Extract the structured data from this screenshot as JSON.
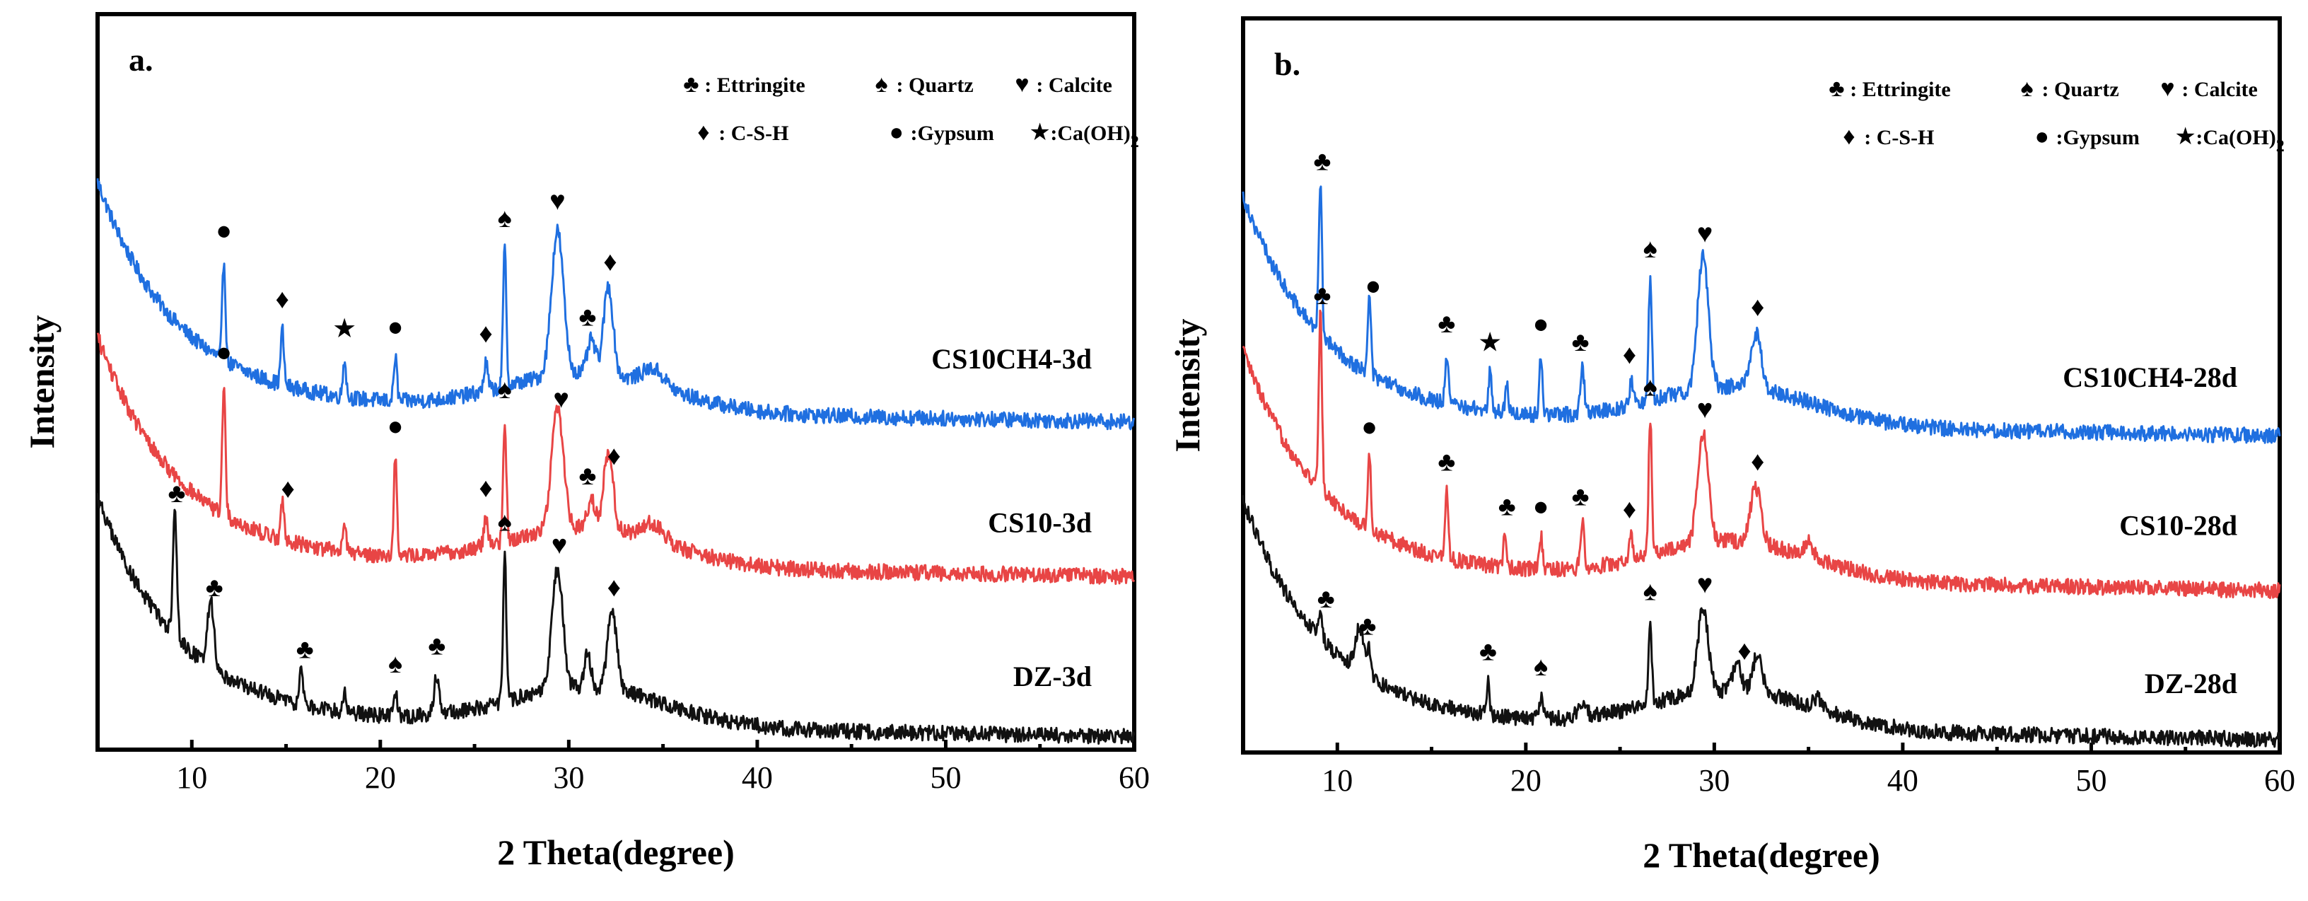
{
  "chart_data": [
    {
      "type": "line",
      "panel_label": "a.",
      "xlabel": "2 Theta(degree)",
      "ylabel": "Intensity",
      "xlim": [
        5,
        60
      ],
      "xticks": [
        10,
        20,
        30,
        40,
        50,
        60
      ],
      "yticks": "none",
      "legend": {
        "placement": "top-right",
        "entries": [
          {
            "symbol": "♣",
            "text": ": Ettringite"
          },
          {
            "symbol": "♠",
            "text": ": Quartz"
          },
          {
            "symbol": "♥",
            "text": ": Calcite"
          },
          {
            "symbol": "♦",
            "text": ": C-S-H"
          },
          {
            "symbol": "●",
            "text": ":Gypsum"
          },
          {
            "symbol": "★",
            "text": ":Ca(OH)",
            "subscript": "2"
          }
        ]
      },
      "series": [
        {
          "name": "CS10CH4-3d",
          "color": "#1f6fe0",
          "baseline": 0.6,
          "bg_start": 0.4,
          "tail": 0.5,
          "peaks": [
            [
              11.7,
              0.18,
              0.12
            ],
            [
              14.8,
              0.1,
              0.12
            ],
            [
              18.1,
              0.07,
              0.12
            ],
            [
              20.8,
              0.08,
              0.12
            ],
            [
              25.6,
              0.05,
              0.15
            ],
            [
              26.6,
              0.25,
              0.12
            ],
            [
              29.4,
              0.26,
              0.45
            ],
            [
              31.2,
              0.06,
              0.3
            ],
            [
              32.1,
              0.16,
              0.35
            ],
            [
              34.5,
              0.03,
              0.8
            ]
          ],
          "markers": [
            {
              "x": 11.7,
              "symbol": "●"
            },
            {
              "x": 14.8,
              "symbol": "♦"
            },
            {
              "x": 18.1,
              "symbol": "★"
            },
            {
              "x": 20.8,
              "symbol": "●"
            },
            {
              "x": 25.6,
              "symbol": "♦"
            },
            {
              "x": 26.6,
              "symbol": "♠"
            },
            {
              "x": 29.4,
              "symbol": "♥"
            },
            {
              "x": 31.0,
              "symbol": "♣"
            },
            {
              "x": 32.2,
              "symbol": "♦"
            }
          ]
        },
        {
          "name": "CS10-3d",
          "color": "#e84545",
          "baseline": 0.32,
          "bg_start": 0.4,
          "tail": 0.5,
          "peaks": [
            [
              11.7,
              0.24,
              0.12
            ],
            [
              14.8,
              0.07,
              0.12
            ],
            [
              18.1,
              0.06,
              0.12
            ],
            [
              20.8,
              0.18,
              0.12
            ],
            [
              25.6,
              0.05,
              0.15
            ],
            [
              26.6,
              0.22,
              0.12
            ],
            [
              29.4,
              0.22,
              0.45
            ],
            [
              31.2,
              0.05,
              0.3
            ],
            [
              32.1,
              0.14,
              0.35
            ],
            [
              34.5,
              0.03,
              0.8
            ]
          ],
          "markers": [
            {
              "x": 11.7,
              "symbol": "●"
            },
            {
              "x": 15.1,
              "symbol": "♦"
            },
            {
              "x": 20.8,
              "symbol": "●"
            },
            {
              "x": 25.6,
              "symbol": "♦"
            },
            {
              "x": 26.6,
              "symbol": "♠"
            },
            {
              "x": 29.6,
              "symbol": "♥"
            },
            {
              "x": 31.0,
              "symbol": "♣"
            },
            {
              "x": 32.4,
              "symbol": "♦"
            }
          ]
        },
        {
          "name": "DZ-3d",
          "color": "#111111",
          "baseline": 0.03,
          "bg_start": 0.4,
          "tail": 0.55,
          "peaks": [
            [
              9.1,
              0.22,
              0.15
            ],
            [
              11.0,
              0.12,
              0.25
            ],
            [
              15.8,
              0.06,
              0.15
            ],
            [
              18.1,
              0.04,
              0.12
            ],
            [
              20.8,
              0.04,
              0.15
            ],
            [
              23.0,
              0.07,
              0.2
            ],
            [
              26.6,
              0.27,
              0.12
            ],
            [
              29.4,
              0.22,
              0.4
            ],
            [
              31.0,
              0.06,
              0.25
            ],
            [
              32.3,
              0.14,
              0.35
            ]
          ],
          "markers": [
            {
              "x": 9.2,
              "symbol": "♣"
            },
            {
              "x": 11.2,
              "symbol": "♣"
            },
            {
              "x": 16.0,
              "symbol": "♣"
            },
            {
              "x": 20.8,
              "symbol": "♠"
            },
            {
              "x": 23.0,
              "symbol": "♣"
            },
            {
              "x": 26.6,
              "symbol": "♠"
            },
            {
              "x": 29.5,
              "symbol": "♥"
            },
            {
              "x": 32.4,
              "symbol": "♦"
            }
          ]
        }
      ]
    },
    {
      "type": "line",
      "panel_label": "b.",
      "xlabel": "2 Theta(degree)",
      "ylabel": "Intensity",
      "xlim": [
        5,
        60
      ],
      "xticks": [
        10,
        20,
        30,
        40,
        50,
        60
      ],
      "yticks": "none",
      "legend": {
        "placement": "top-right",
        "entries": [
          {
            "symbol": "♣",
            "text": ": Ettringite"
          },
          {
            "symbol": "♠",
            "text": ": Quartz"
          },
          {
            "symbol": "♥",
            "text": ": Calcite"
          },
          {
            "symbol": "♦",
            "text": ": C-S-H"
          },
          {
            "symbol": "●",
            "text": ":Gypsum"
          },
          {
            "symbol": "★",
            "text": ":Ca(OH)",
            "subscript": "2"
          }
        ]
      },
      "series": [
        {
          "name": "CS10CH4-28d",
          "color": "#1f6fe0",
          "baseline": 0.58,
          "bg_start": 0.4,
          "tail": 0.52,
          "peaks": [
            [
              9.1,
              0.28,
              0.12
            ],
            [
              11.7,
              0.14,
              0.12
            ],
            [
              15.8,
              0.09,
              0.12
            ],
            [
              18.1,
              0.07,
              0.12
            ],
            [
              19.0,
              0.05,
              0.12
            ],
            [
              20.8,
              0.11,
              0.12
            ],
            [
              23.0,
              0.08,
              0.15
            ],
            [
              25.6,
              0.04,
              0.15
            ],
            [
              26.6,
              0.22,
              0.12
            ],
            [
              29.4,
              0.24,
              0.4
            ],
            [
              32.2,
              0.1,
              0.4
            ]
          ],
          "markers": [
            {
              "x": 9.2,
              "symbol": "♣"
            },
            {
              "x": 11.9,
              "symbol": "●"
            },
            {
              "x": 15.8,
              "symbol": "♣"
            },
            {
              "x": 18.1,
              "symbol": "★"
            },
            {
              "x": 20.8,
              "symbol": "●"
            },
            {
              "x": 22.9,
              "symbol": "♣"
            },
            {
              "x": 25.5,
              "symbol": "♦"
            },
            {
              "x": 26.6,
              "symbol": "♠"
            },
            {
              "x": 29.5,
              "symbol": "♥"
            },
            {
              "x": 32.3,
              "symbol": "♦"
            }
          ]
        },
        {
          "name": "CS10-28d",
          "color": "#e84545",
          "baseline": 0.3,
          "bg_start": 0.4,
          "tail": 0.52,
          "peaks": [
            [
              9.1,
              0.32,
              0.12
            ],
            [
              11.7,
              0.13,
              0.12
            ],
            [
              15.8,
              0.12,
              0.12
            ],
            [
              18.9,
              0.06,
              0.12
            ],
            [
              20.8,
              0.06,
              0.12
            ],
            [
              23.0,
              0.08,
              0.15
            ],
            [
              25.6,
              0.04,
              0.15
            ],
            [
              26.6,
              0.25,
              0.12
            ],
            [
              29.4,
              0.2,
              0.4
            ],
            [
              32.2,
              0.1,
              0.4
            ],
            [
              35.0,
              0.03,
              0.3
            ]
          ],
          "markers": [
            {
              "x": 9.2,
              "symbol": "♣"
            },
            {
              "x": 11.7,
              "symbol": "●"
            },
            {
              "x": 15.8,
              "symbol": "♣"
            },
            {
              "x": 19.0,
              "symbol": "♣"
            },
            {
              "x": 20.8,
              "symbol": "●"
            },
            {
              "x": 22.9,
              "symbol": "♣"
            },
            {
              "x": 25.5,
              "symbol": "♦"
            },
            {
              "x": 26.6,
              "symbol": "♠"
            },
            {
              "x": 29.5,
              "symbol": "♥"
            },
            {
              "x": 32.3,
              "symbol": "♦"
            }
          ]
        },
        {
          "name": "DZ-28d",
          "color": "#111111",
          "baseline": 0.03,
          "bg_start": 0.4,
          "tail": 0.55,
          "peaks": [
            [
              9.1,
              0.05,
              0.15
            ],
            [
              11.2,
              0.08,
              0.35
            ],
            [
              11.7,
              0.04,
              0.15
            ],
            [
              18.0,
              0.06,
              0.12
            ],
            [
              20.8,
              0.04,
              0.15
            ],
            [
              23.0,
              0.03,
              0.3
            ],
            [
              26.6,
              0.15,
              0.12
            ],
            [
              29.4,
              0.15,
              0.4
            ],
            [
              31.2,
              0.05,
              0.3
            ],
            [
              32.3,
              0.07,
              0.35
            ],
            [
              35.5,
              0.02,
              0.3
            ]
          ],
          "markers": [
            {
              "x": 9.4,
              "symbol": "♣"
            },
            {
              "x": 11.6,
              "symbol": "♣"
            },
            {
              "x": 18.0,
              "symbol": "♣"
            },
            {
              "x": 20.8,
              "symbol": "♠"
            },
            {
              "x": 26.6,
              "symbol": "♠"
            },
            {
              "x": 29.5,
              "symbol": "♥"
            },
            {
              "x": 31.6,
              "symbol": "♦"
            }
          ]
        }
      ]
    }
  ]
}
